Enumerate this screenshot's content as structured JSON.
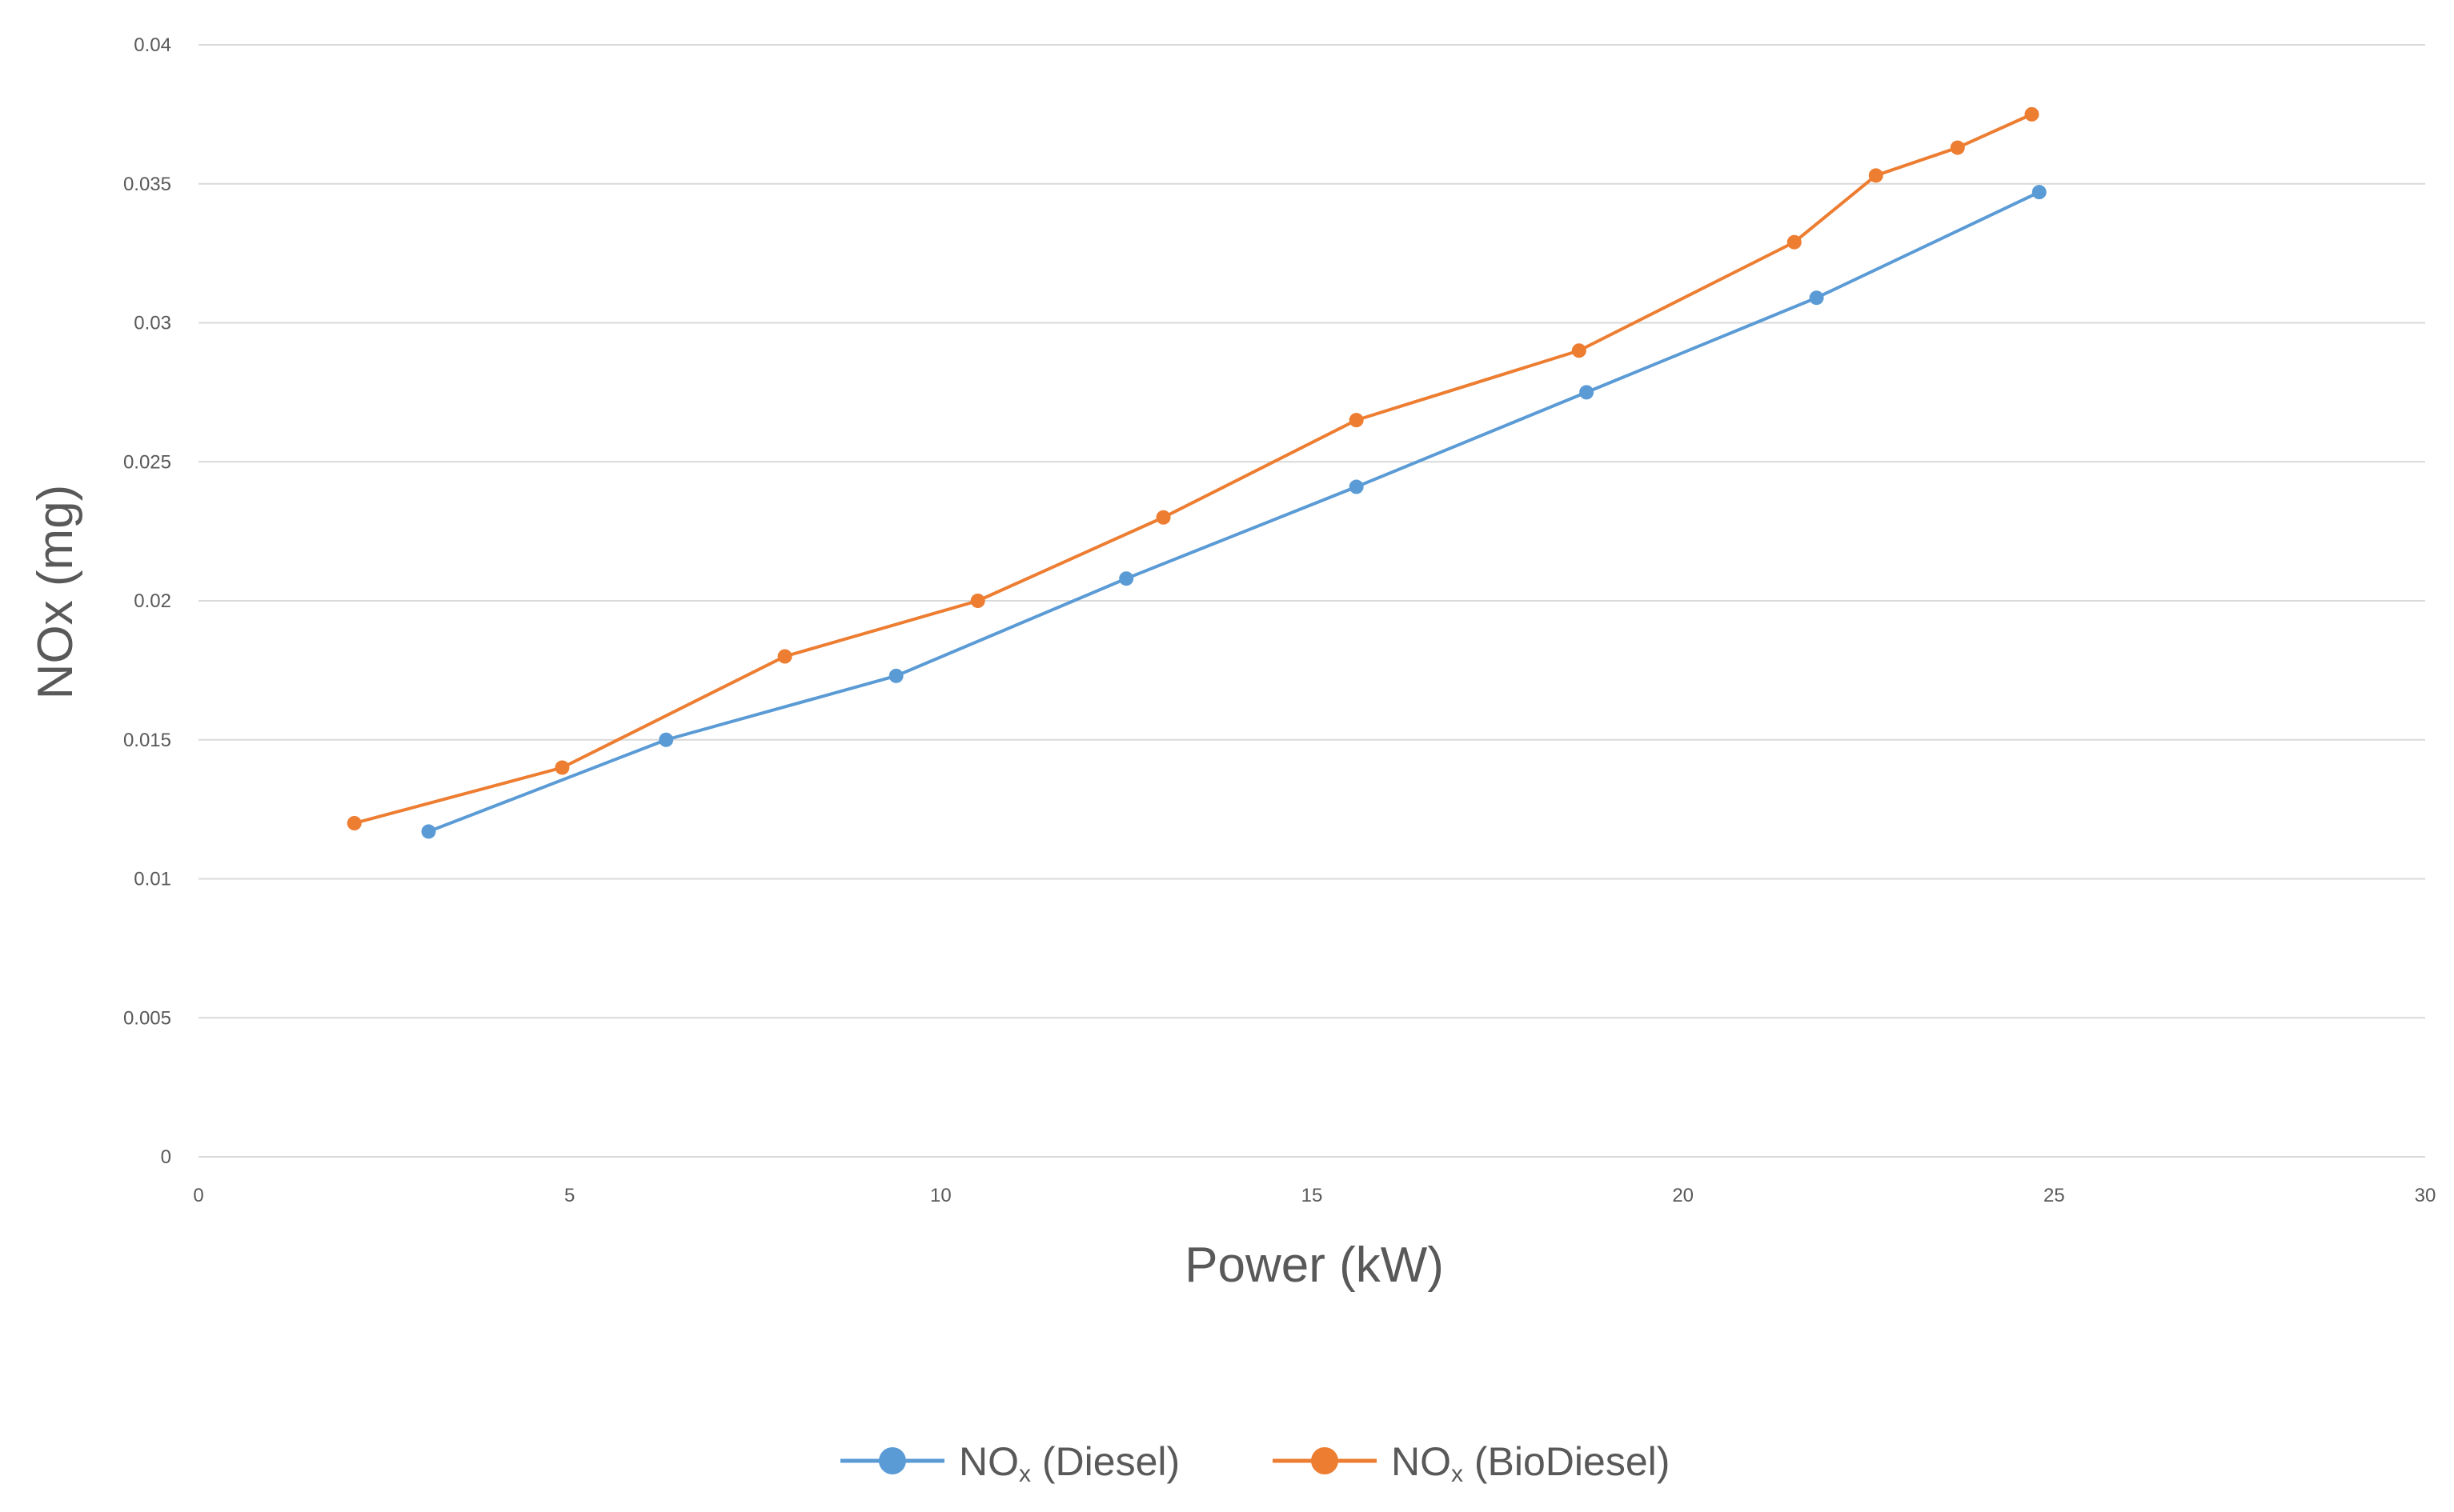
{
  "chart_data": {
    "type": "line",
    "title": "",
    "xlabel": "Power (kW)",
    "ylabel": "NOx (mg)",
    "xlim": [
      0,
      30
    ],
    "ylim": [
      0,
      0.04
    ],
    "x_ticks": [
      0,
      5,
      10,
      15,
      20,
      25,
      30
    ],
    "y_ticks": [
      0,
      0.005,
      0.01,
      0.015,
      0.02,
      0.025,
      0.03,
      0.035,
      0.04
    ],
    "x_tick_labels": [
      "0",
      "5",
      "10",
      "15",
      "20",
      "25",
      "30"
    ],
    "y_tick_labels": [
      "0",
      "0.005",
      "0.01",
      "0.015",
      "0.02",
      "0.025",
      "0.03",
      "0.035",
      "0.04"
    ],
    "grid": true,
    "legend_position": "bottom",
    "series": [
      {
        "name": "NOx (Diesel)",
        "legend_main": "NO",
        "legend_sub": "x",
        "legend_rest": " (Diesel)",
        "color": "#5B9BD5",
        "x": [
          3.1,
          6.3,
          9.4,
          12.5,
          15.6,
          18.7,
          21.8,
          24.8
        ],
        "y": [
          0.0117,
          0.015,
          0.0173,
          0.0208,
          0.0241,
          0.0275,
          0.0309,
          0.0347
        ]
      },
      {
        "name": "NOx (BioDiesel)",
        "legend_main": "NO",
        "legend_sub": "x",
        "legend_rest": "  (BioDiesel)",
        "color": "#ED7D31",
        "x": [
          2.1,
          4.9,
          7.9,
          10.5,
          13.0,
          15.6,
          18.6,
          21.5,
          22.6,
          23.7,
          24.7
        ],
        "y": [
          0.012,
          0.014,
          0.018,
          0.02,
          0.023,
          0.0265,
          0.029,
          0.0329,
          0.0353,
          0.0363,
          0.0375
        ]
      }
    ]
  }
}
